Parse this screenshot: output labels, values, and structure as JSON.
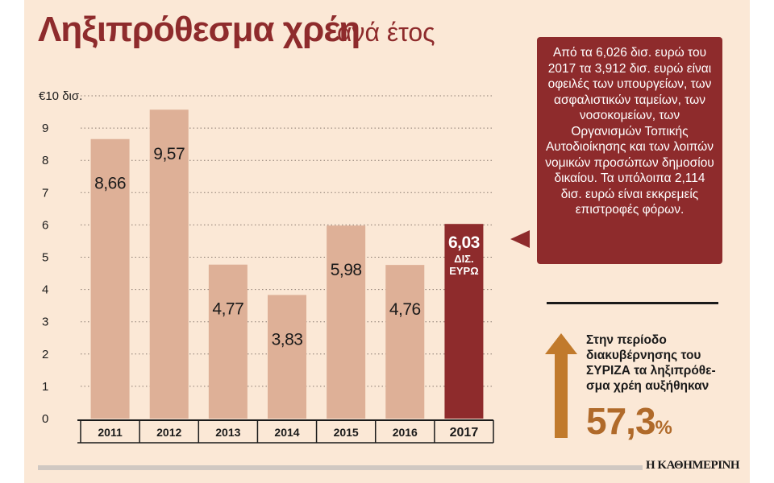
{
  "title": {
    "main": "Ληξιπρόθεσμα χρέη",
    "sub": "ανά έτος"
  },
  "chart_data": {
    "type": "bar",
    "categories": [
      "2011",
      "2012",
      "2013",
      "2014",
      "2015",
      "2016",
      "2017"
    ],
    "values": [
      8.66,
      9.57,
      4.77,
      3.83,
      5.98,
      4.76,
      6.03
    ],
    "value_labels": [
      "8,66",
      "9,57",
      "4,77",
      "3,83",
      "5,98",
      "4,76",
      "6,03"
    ],
    "highlight_index": 6,
    "highlight_unit": [
      "ΔΙΣ.",
      "ΕΥΡΩ"
    ],
    "ylim": [
      0,
      10
    ],
    "ytick_values": [
      0,
      1,
      2,
      3,
      4,
      5,
      6,
      7,
      8,
      9,
      10
    ],
    "ytick_labels": [
      "0",
      "1",
      "2",
      "3",
      "4",
      "5",
      "6",
      "7",
      "8",
      "9",
      "€10 δισ."
    ],
    "grid": "dotted horizontal",
    "colors": {
      "bar": "#deb097",
      "highlight": "#8e2b2c",
      "text": "#1a1a1a"
    }
  },
  "callout": {
    "text": "Από τα 6,026 δισ. ευρώ του 2017 τα 3,912 δισ. ευρώ είναι οφειλές των υπουργείων, των ασφαλιστικών ταμείων, των νοσοκομείων, των Οργανισμών Τοπικής Αυτοδιοίκησης και των λοιπών νομικών προσώπων δημοσίου δικαίου. Τα υπόλοιπα 2,114 δισ. ευρώ είναι εκκρεμείς επιστροφές φόρων."
  },
  "growth": {
    "lines": [
      "Στην περίοδο",
      "διακυβέρνησης του",
      "ΣΥΡΙΖΑ τα ληξιπρόθε-",
      "σμα χρέη αυξήθηκαν"
    ],
    "value": "57,3",
    "unit": "%",
    "arrow_color": "#c17a2c"
  },
  "source": "Η ΚΑΘΗΜΕΡΙΝΗ"
}
